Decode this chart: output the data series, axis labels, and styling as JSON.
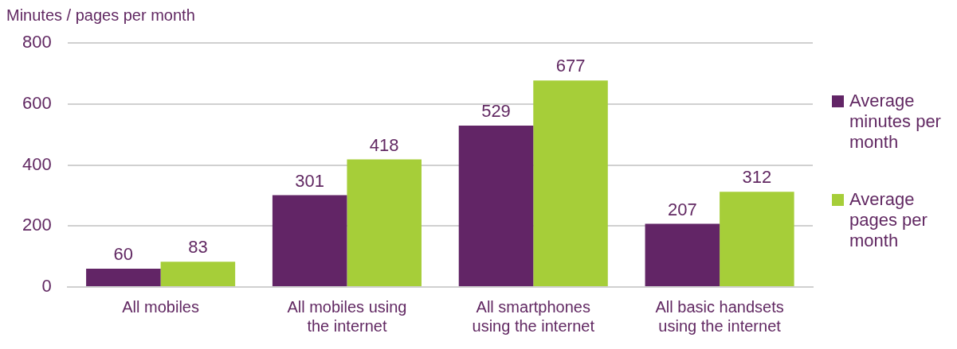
{
  "chart_data": {
    "type": "bar",
    "ylabel": "Minutes / pages per month",
    "categories": [
      "All mobiles",
      "All mobiles using the internet",
      "All smartphones using the internet",
      "All basic handsets using the internet"
    ],
    "series": [
      {
        "name": "Average minutes per month",
        "color": "#622566",
        "values": [
          60,
          301,
          529,
          207
        ]
      },
      {
        "name": "Average pages per month",
        "color": "#a6ce39",
        "values": [
          83,
          418,
          677,
          312
        ]
      }
    ],
    "ylim": [
      0,
      800
    ],
    "yticks": [
      0,
      200,
      400,
      600,
      800
    ],
    "grid": "y",
    "legend": "right",
    "data_labels": true
  }
}
